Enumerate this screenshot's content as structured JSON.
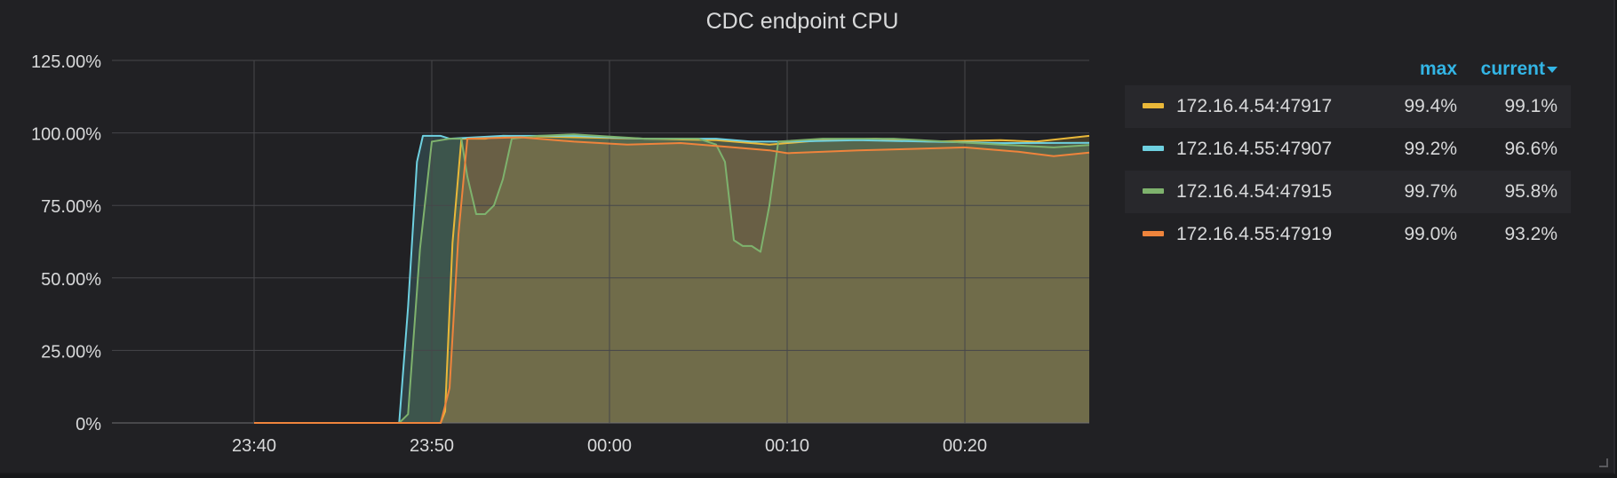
{
  "chart_data": {
    "type": "area",
    "title": "CDC endpoint CPU",
    "y_ticks": [
      "0%",
      "25.00%",
      "50.00%",
      "75.00%",
      "100.00%",
      "125.00%"
    ],
    "ylim": [
      0,
      125
    ],
    "x_range": [
      "23:32",
      "00:27"
    ],
    "x_ticks": [
      "23:40",
      "23:50",
      "00:00",
      "00:10",
      "00:20"
    ],
    "grid": true,
    "legend_placement": "right",
    "legend_columns": {
      "max": "max",
      "current": "current"
    },
    "series": [
      {
        "name": "172.16.4.54:47917",
        "color": "#eab839",
        "max": "99.4%",
        "current": "99.1%",
        "points": [
          [
            "23:40",
            0
          ],
          [
            "23:50:30",
            0
          ],
          [
            "23:50:45",
            4
          ],
          [
            "23:51:10",
            62
          ],
          [
            "23:51:40",
            98
          ],
          [
            "23:53",
            98
          ],
          [
            "23:54",
            99
          ],
          [
            "23:58",
            98.5
          ],
          [
            "00:02",
            98
          ],
          [
            "00:06",
            97.5
          ],
          [
            "00:09",
            96
          ],
          [
            "00:12",
            97.5
          ],
          [
            "00:15",
            98
          ],
          [
            "00:18",
            97
          ],
          [
            "00:22",
            97.5
          ],
          [
            "00:24",
            97
          ],
          [
            "00:27",
            99
          ]
        ]
      },
      {
        "name": "172.16.4.55:47907",
        "color": "#6ed0e0",
        "max": "99.2%",
        "current": "96.6%",
        "points": [
          [
            "23:40",
            0
          ],
          [
            "23:48:10",
            0
          ],
          [
            "23:48:40",
            40
          ],
          [
            "23:49:10",
            90
          ],
          [
            "23:49:30",
            99
          ],
          [
            "23:50:30",
            99
          ],
          [
            "23:51",
            98
          ],
          [
            "23:54",
            99
          ],
          [
            "23:58",
            99
          ],
          [
            "00:02",
            98
          ],
          [
            "00:06",
            98
          ],
          [
            "00:08",
            97
          ],
          [
            "00:10",
            97
          ],
          [
            "00:14",
            97.5
          ],
          [
            "00:18",
            97
          ],
          [
            "00:22",
            96.5
          ],
          [
            "00:27",
            96.6
          ]
        ]
      },
      {
        "name": "172.16.4.54:47915",
        "color": "#7eb26d",
        "max": "99.7%",
        "current": "95.8%",
        "points": [
          [
            "23:40",
            0
          ],
          [
            "23:48:10",
            0
          ],
          [
            "23:48:40",
            3
          ],
          [
            "23:49:20",
            60
          ],
          [
            "23:50",
            97
          ],
          [
            "23:51",
            98
          ],
          [
            "23:51:40",
            98
          ],
          [
            "23:52",
            85
          ],
          [
            "23:52:30",
            72
          ],
          [
            "23:53",
            72
          ],
          [
            "23:53:30",
            75
          ],
          [
            "23:54",
            84
          ],
          [
            "23:54:30",
            98
          ],
          [
            "23:56",
            99
          ],
          [
            "23:58",
            99.5
          ],
          [
            "00:02",
            98
          ],
          [
            "00:05",
            98
          ],
          [
            "00:06",
            96
          ],
          [
            "00:06:30",
            90
          ],
          [
            "00:07",
            63
          ],
          [
            "00:07:30",
            61
          ],
          [
            "00:08",
            61
          ],
          [
            "00:08:30",
            59
          ],
          [
            "00:09",
            75
          ],
          [
            "00:09:30",
            97
          ],
          [
            "00:12",
            98
          ],
          [
            "00:16",
            98
          ],
          [
            "00:19",
            97
          ],
          [
            "00:22",
            96
          ],
          [
            "00:25",
            95
          ],
          [
            "00:27",
            95.8
          ]
        ]
      },
      {
        "name": "172.16.4.55:47919",
        "color": "#ef843c",
        "max": "99.0%",
        "current": "93.2%",
        "points": [
          [
            "23:40",
            0
          ],
          [
            "23:50:30",
            0
          ],
          [
            "23:51",
            12
          ],
          [
            "23:51:30",
            65
          ],
          [
            "23:52",
            98
          ],
          [
            "23:55",
            98.5
          ],
          [
            "23:58",
            97
          ],
          [
            "00:01",
            96
          ],
          [
            "00:04",
            96.5
          ],
          [
            "00:07",
            95
          ],
          [
            "00:09",
            94
          ],
          [
            "00:10",
            93
          ],
          [
            "00:14",
            94
          ],
          [
            "00:17",
            94.5
          ],
          [
            "00:20",
            95
          ],
          [
            "00:23",
            93.5
          ],
          [
            "00:25",
            92
          ],
          [
            "00:27",
            93.2
          ]
        ]
      }
    ]
  }
}
